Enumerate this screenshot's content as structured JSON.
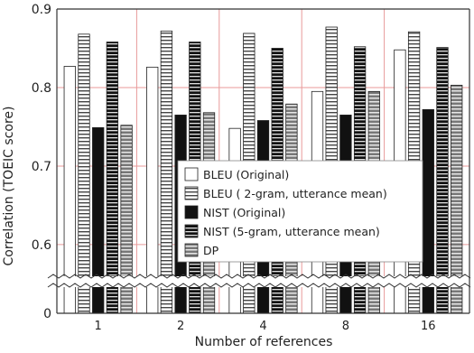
{
  "chart_data": {
    "type": "bar",
    "title": "",
    "xlabel": "Number of references",
    "ylabel": "Correlation (TOEIC score)",
    "categories": [
      "1",
      "2",
      "4",
      "8",
      "16"
    ],
    "ylim": [
      0,
      0.9
    ],
    "axis_break": {
      "from": 0.0,
      "to": 0.57
    },
    "yticks": [
      {
        "label": "0",
        "value": 0.0
      },
      {
        "label": "0.6",
        "value": 0.6
      },
      {
        "label": "0.7",
        "value": 0.7
      },
      {
        "label": "0.8",
        "value": 0.8
      },
      {
        "label": "0.9",
        "value": 0.9
      }
    ],
    "grid": true,
    "legend_position": "center-right",
    "series": [
      {
        "name": "BLEU (Original)",
        "pattern": "white",
        "values": [
          0.827,
          0.826,
          0.748,
          0.795,
          0.848
        ]
      },
      {
        "name": "BLEU ( 2-gram, utterance mean)",
        "pattern": "horizontal-stripes-light",
        "values": [
          0.868,
          0.872,
          0.869,
          0.877,
          0.871
        ]
      },
      {
        "name": "NIST (Original)",
        "pattern": "black",
        "values": [
          0.749,
          0.765,
          0.758,
          0.765,
          0.772
        ]
      },
      {
        "name": "NIST (5-gram, utterance mean)",
        "pattern": "horizontal-stripes-dark",
        "values": [
          0.858,
          0.858,
          0.85,
          0.852,
          0.851
        ]
      },
      {
        "name": "DP",
        "pattern": "horizontal-stripes-gray",
        "values": [
          0.752,
          0.768,
          0.779,
          0.795,
          0.803
        ]
      }
    ],
    "colors": {
      "gridline": "#e89a9a",
      "axis": "#333333",
      "bar_edge": "#222222"
    }
  }
}
